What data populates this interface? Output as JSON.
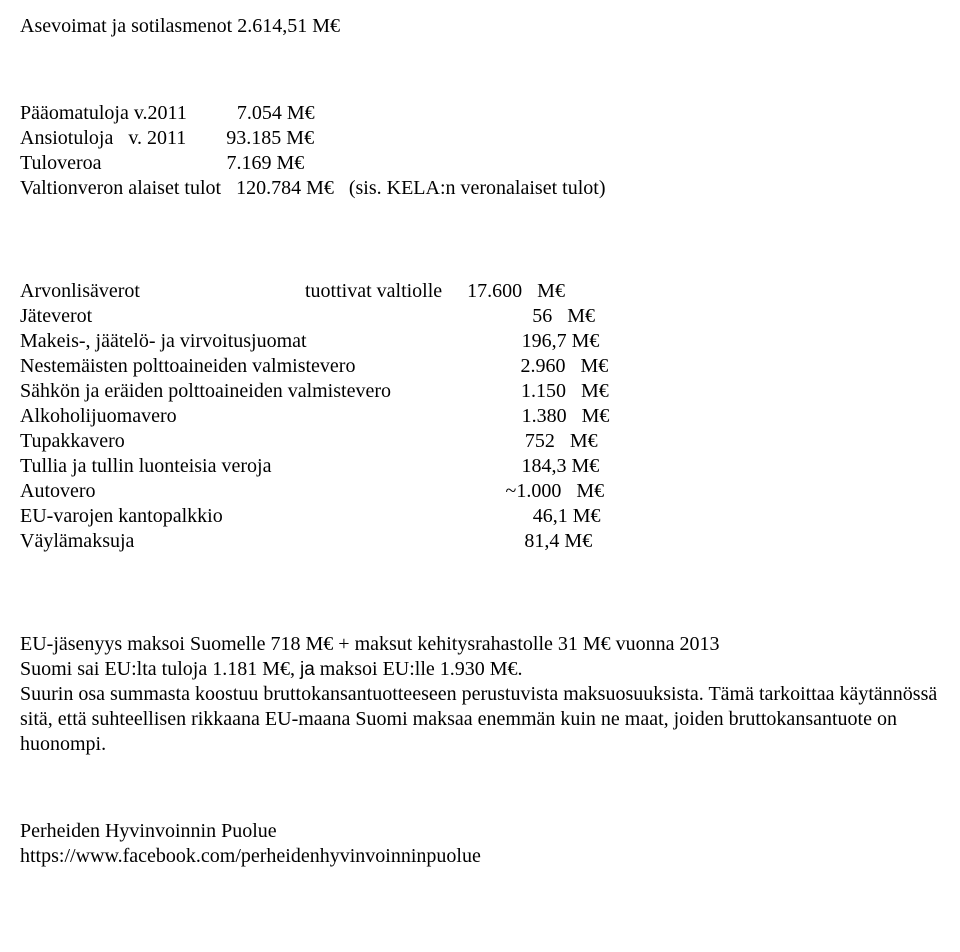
{
  "header": {
    "line1": "Asevoimat ja sotilasmenot 2.614,51 M€"
  },
  "section1": {
    "rows": [
      {
        "label": "Pääomatuloja v.2011",
        "pad": "          ",
        "value": "7.054 M€"
      },
      {
        "label": "Ansiotuloja   v. 2011",
        "pad": "        ",
        "value": "93.185 M€"
      },
      {
        "label": "Tuloveroa",
        "pad": "                         ",
        "value": "7.169 M€"
      },
      {
        "label": "Valtionveron alaiset tulot",
        "pad": "   ",
        "value": "120.784 M€   (sis. KELA:n veronalaiset tulot)"
      }
    ]
  },
  "section2": {
    "rows": [
      {
        "left": "Arvonlisäverot                                 tuottivat valtiolle",
        "right": "     17.600   M€"
      },
      {
        "left": "Jäteverot",
        "right": "                                                                                        56   M€"
      },
      {
        "left": "Makeis-, jäätelö- ja virvoitusjuomat",
        "right": "                                           196,7 M€"
      },
      {
        "left": "Nestemäisten polttoaineiden valmistevero",
        "right": "                                 2.960   M€"
      },
      {
        "left": "Sähkön ja eräiden polttoaineiden valmistevero",
        "right": "                          1.150   M€"
      },
      {
        "left": "Alkoholijuomavero",
        "right": "                                                                     1.380   M€"
      },
      {
        "left": "Tupakkavero",
        "right": "                                                                                752   M€"
      },
      {
        "left": "Tullia ja tullin luonteisia veroja",
        "right": "                                                  184,3 M€"
      },
      {
        "left": "Autovero",
        "right": "                                                                                  ~1.000   M€"
      },
      {
        "left": "EU-varojen kantopalkkio",
        "right": "                                                              46,1 M€"
      },
      {
        "left": "Väylämaksuja",
        "right": "                                                                              81,4 M€"
      }
    ]
  },
  "para1": {
    "line1_a": "EU-jäsenyys maksoi Suomelle 718 M€ + maksut kehitysrahastolle 31 M€ vuonna 2013",
    "line2_a": "Suomi sai EU:lta tuloja  1.181 M€, ",
    "line2_sans": "ja",
    "line2_b": " maksoi EU:lle 1.930 M€.",
    "rest": "Suurin osa summasta koostuu bruttokansantuotteeseen perustuvista maksuosuuksista. Tämä tarkoittaa käytännössä sitä, että suhteellisen rikkaana EU-maana Suomi maksaa enemmän kuin ne maat, joiden bruttokansantuote on huonompi."
  },
  "footer": {
    "line1": "Perheiden Hyvinvoinnin Puolue",
    "line2": "https://www.facebook.com/perheidenhyvinvoinninpuolue"
  }
}
